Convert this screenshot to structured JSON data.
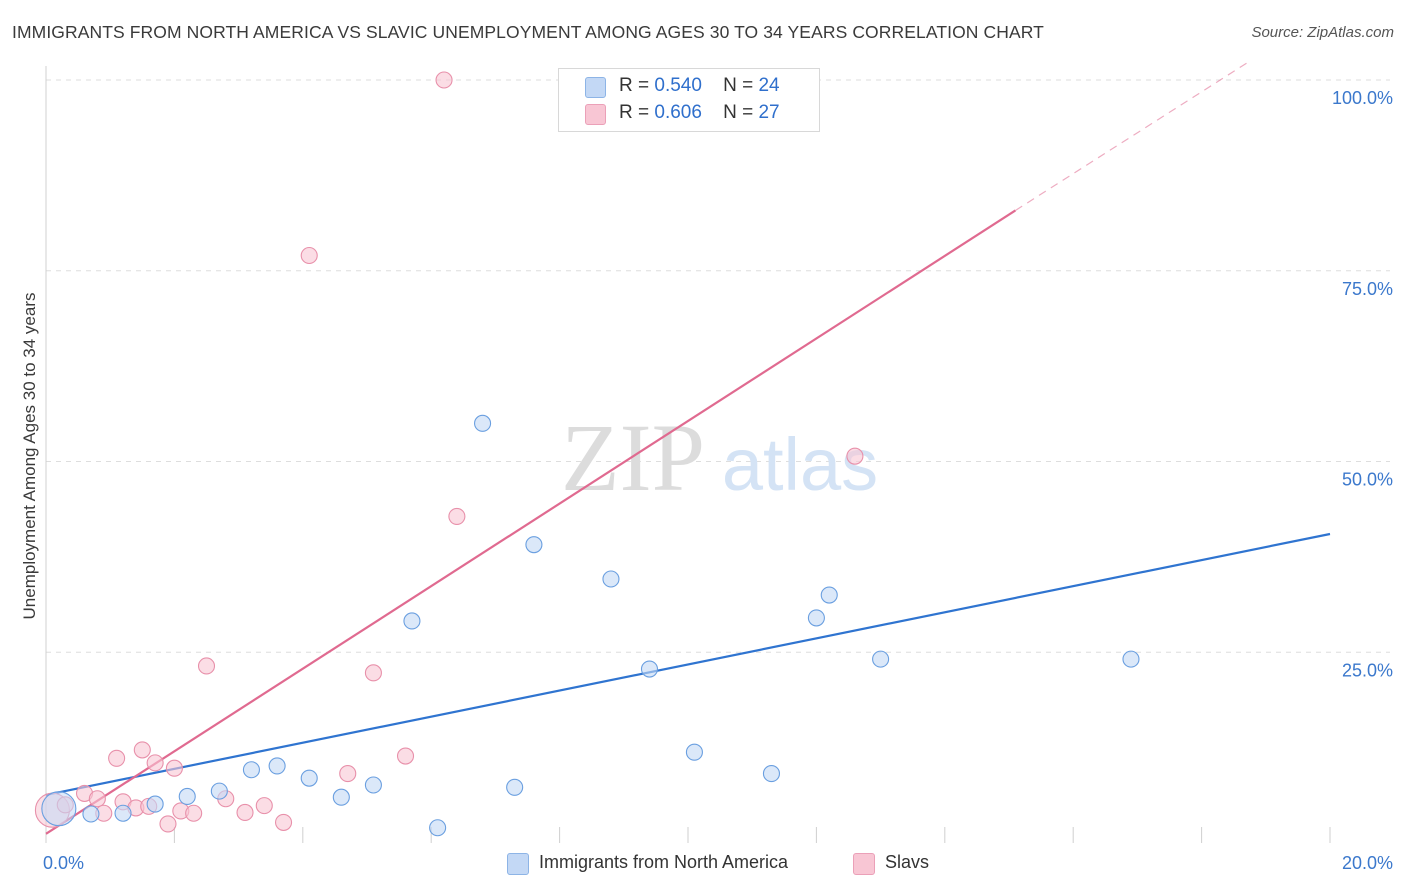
{
  "title": "IMMIGRANTS FROM NORTH AMERICA VS SLAVIC UNEMPLOYMENT AMONG AGES 30 TO 34 YEARS CORRELATION CHART",
  "source": "Source: ZipAtlas.com",
  "watermark": {
    "zip": "ZIP",
    "atlas": "atlas"
  },
  "legend": {
    "r_label": "R =",
    "n_label": "N =",
    "series": [
      {
        "r": "0.540",
        "n": "24"
      },
      {
        "r": "0.606",
        "n": "27"
      }
    ]
  },
  "chart_data": {
    "type": "scatter",
    "title": "IMMIGRANTS FROM NORTH AMERICA VS SLAVIC UNEMPLOYMENT AMONG AGES 30 TO 34 YEARS CORRELATION CHART",
    "xlabel": "",
    "ylabel": "Unemployment Among Ages 30 to 34 years",
    "xlim": [
      0,
      20
    ],
    "ylim": [
      0,
      100
    ],
    "x_tick_labels": [
      "0.0%",
      "20.0%"
    ],
    "y_tick_labels": [
      "100.0%",
      "75.0%",
      "50.0%",
      "25.0%"
    ],
    "y_tick_values": [
      100,
      75,
      50,
      25
    ],
    "grid": true,
    "legend_position": "top-center",
    "series": [
      {
        "name": "Immigrants from North America",
        "color": "#6a9fe0",
        "fill": "#c3d8f5",
        "line_color": "#2f74d0",
        "r": 0.54,
        "n": 24,
        "trend": {
          "x0": 0,
          "y0": 6.3,
          "x1": 20,
          "y1": 40.5
        },
        "points": [
          {
            "x": 0.2,
            "y": 4.5,
            "big": true
          },
          {
            "x": 0.7,
            "y": 3.8
          },
          {
            "x": 1.2,
            "y": 3.9
          },
          {
            "x": 1.7,
            "y": 5.1
          },
          {
            "x": 2.2,
            "y": 6.1
          },
          {
            "x": 2.7,
            "y": 6.8
          },
          {
            "x": 3.2,
            "y": 9.6
          },
          {
            "x": 3.6,
            "y": 10.1
          },
          {
            "x": 4.1,
            "y": 8.5
          },
          {
            "x": 4.6,
            "y": 6.0
          },
          {
            "x": 5.1,
            "y": 7.6
          },
          {
            "x": 5.7,
            "y": 29.1
          },
          {
            "x": 6.1,
            "y": 2.0
          },
          {
            "x": 6.8,
            "y": 55.0
          },
          {
            "x": 7.3,
            "y": 7.3
          },
          {
            "x": 7.6,
            "y": 39.1
          },
          {
            "x": 8.8,
            "y": 34.6
          },
          {
            "x": 9.4,
            "y": 22.8
          },
          {
            "x": 10.1,
            "y": 11.9
          },
          {
            "x": 11.3,
            "y": 9.1
          },
          {
            "x": 12.0,
            "y": 29.5
          },
          {
            "x": 12.2,
            "y": 32.5
          },
          {
            "x": 13.0,
            "y": 24.1
          },
          {
            "x": 16.9,
            "y": 24.1
          }
        ]
      },
      {
        "name": "Slavs",
        "color": "#e890aa",
        "fill": "#f8c6d4",
        "line_color": "#e06a90",
        "r": 0.606,
        "n": 27,
        "trend": {
          "x0": 0,
          "y0": 1.2,
          "x1": 15.1,
          "y1": 82.9,
          "dash_x1": 18.7,
          "dash_y1": 102.2
        },
        "points": [
          {
            "x": 0.1,
            "y": 4.3,
            "big": true
          },
          {
            "x": 0.6,
            "y": 6.5
          },
          {
            "x": 0.8,
            "y": 5.8
          },
          {
            "x": 0.9,
            "y": 3.9
          },
          {
            "x": 1.1,
            "y": 11.1
          },
          {
            "x": 1.2,
            "y": 5.4
          },
          {
            "x": 1.4,
            "y": 4.6
          },
          {
            "x": 1.5,
            "y": 12.2
          },
          {
            "x": 1.7,
            "y": 10.5
          },
          {
            "x": 1.9,
            "y": 2.5
          },
          {
            "x": 2.0,
            "y": 9.8
          },
          {
            "x": 2.1,
            "y": 4.2
          },
          {
            "x": 2.3,
            "y": 3.9
          },
          {
            "x": 2.5,
            "y": 23.2
          },
          {
            "x": 2.8,
            "y": 5.8
          },
          {
            "x": 3.1,
            "y": 4.0
          },
          {
            "x": 3.4,
            "y": 4.9
          },
          {
            "x": 3.7,
            "y": 2.7
          },
          {
            "x": 4.1,
            "y": 77.0
          },
          {
            "x": 4.7,
            "y": 9.1
          },
          {
            "x": 5.1,
            "y": 22.3
          },
          {
            "x": 5.6,
            "y": 11.4
          },
          {
            "x": 6.2,
            "y": 100.0
          },
          {
            "x": 6.4,
            "y": 42.8
          },
          {
            "x": 12.6,
            "y": 50.7
          },
          {
            "x": 0.3,
            "y": 5.0
          },
          {
            "x": 1.6,
            "y": 4.8
          }
        ]
      }
    ]
  }
}
